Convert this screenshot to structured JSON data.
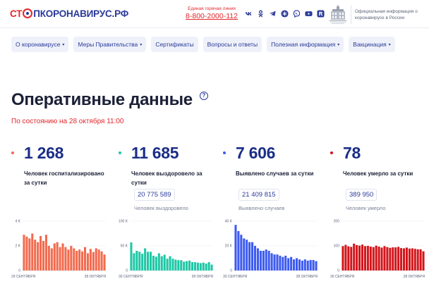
{
  "header": {
    "logo": {
      "part1": "СТ",
      "part2": "ПКОРОНАВИРУС.РФ"
    },
    "hotline": {
      "label": "Единая горячая линия",
      "phone": "8-800-2000-112"
    },
    "socials": [
      "vk-icon",
      "odnoklassniki-icon",
      "telegram-icon",
      "snowflake-icon",
      "viber-icon",
      "youtube-icon",
      "rutube-icon"
    ],
    "gov_text": "Официальная информация о коронавирусе в России"
  },
  "nav": {
    "items": [
      {
        "label": "О коронавирусе",
        "has_caret": true
      },
      {
        "label": "Меры Правительства",
        "has_caret": true
      },
      {
        "label": "Сертификаты",
        "has_caret": false
      },
      {
        "label": "Вопросы и ответы",
        "has_caret": false
      },
      {
        "label": "Полезная информация",
        "has_caret": true
      },
      {
        "label": "Вакцинация",
        "has_caret": true
      }
    ]
  },
  "main": {
    "title": "Оперативные данные",
    "as_of": "По состоянию на 28 октября 11:00"
  },
  "colors": {
    "hospitalized": "#f26b4f",
    "recovered": "#1fc7a6",
    "cases": "#3d5bef",
    "deaths": "#d3151b",
    "brand_red": "#e3262b",
    "brand_blue": "#2a3a99"
  },
  "stats": [
    {
      "key": "hospitalized",
      "value": "1 268",
      "label": "Человек госпитализировано за сутки",
      "total": null,
      "total_label": null
    },
    {
      "key": "recovered",
      "value": "11 685",
      "label": "Человек выздоровело за сутки",
      "total": "20 775 589",
      "total_label": "Человек выздоровело"
    },
    {
      "key": "cases",
      "value": "7 606",
      "label": "Выявлено случаев за сутки",
      "total": "21 409 815",
      "total_label": "Выявлено случаев"
    },
    {
      "key": "deaths",
      "value": "78",
      "label": "Человек умерло за сутки",
      "total": "389 950",
      "total_label": "Человек умерло"
    }
  ],
  "chart_data": [
    {
      "type": "bar",
      "series_key": "hospitalized",
      "x_start": "29 СЕНТЯБРЯ",
      "x_end": "28 ОКТЯБРЯ",
      "y_ticks": [
        "4 K",
        "2 K",
        "0"
      ],
      "ylim": [
        0,
        4000
      ],
      "values": [
        2900,
        2750,
        2600,
        3000,
        2500,
        2300,
        2800,
        2400,
        2900,
        2000,
        1800,
        2200,
        2300,
        1900,
        2200,
        1900,
        1700,
        2000,
        1800,
        1600,
        1700,
        1550,
        1900,
        1400,
        1750,
        1500,
        1800,
        1700,
        1550,
        1300
      ]
    },
    {
      "type": "bar",
      "series_key": "recovered",
      "x_start": "30 СЕНТЯБРЯ",
      "x_end": "28 ОКТЯБРЯ",
      "y_ticks": [
        "100 K",
        "50 K",
        "0"
      ],
      "ylim": [
        0,
        100000
      ],
      "values": [
        57000,
        35000,
        40000,
        38000,
        34000,
        45000,
        38000,
        38000,
        30000,
        28000,
        35000,
        29000,
        32000,
        24000,
        29000,
        24000,
        22000,
        21000,
        21000,
        18000,
        19000,
        20000,
        17000,
        17000,
        16000,
        15000,
        16000,
        14000,
        17000,
        12000
      ]
    },
    {
      "type": "bar",
      "series_key": "cases",
      "x_start": "30 СЕНТЯБРЯ",
      "x_end": "28 ОКТЯБРЯ",
      "y_ticks": [
        "40 K",
        "20 K",
        "0"
      ],
      "ylim": [
        0,
        40000
      ],
      "values": [
        37000,
        32000,
        29000,
        26000,
        25000,
        23000,
        23000,
        20000,
        18000,
        16000,
        16000,
        17000,
        16000,
        14000,
        13000,
        13000,
        12000,
        11000,
        12000,
        10000,
        11000,
        9000,
        10000,
        9000,
        8000,
        9000,
        8000,
        8500,
        8500,
        7606
      ]
    },
    {
      "type": "bar",
      "series_key": "deaths",
      "x_start": "30 СЕНТЯБРЯ",
      "x_end": "28 ОКТЯБРЯ",
      "y_ticks": [
        "200",
        "100",
        "0"
      ],
      "ylim": [
        0,
        200
      ],
      "values": [
        99,
        104,
        98,
        96,
        109,
        103,
        101,
        105,
        99,
        100,
        97,
        95,
        101,
        97,
        93,
        99,
        95,
        92,
        94,
        94,
        96,
        91,
        90,
        93,
        89,
        90,
        88,
        86,
        86,
        78
      ]
    }
  ]
}
